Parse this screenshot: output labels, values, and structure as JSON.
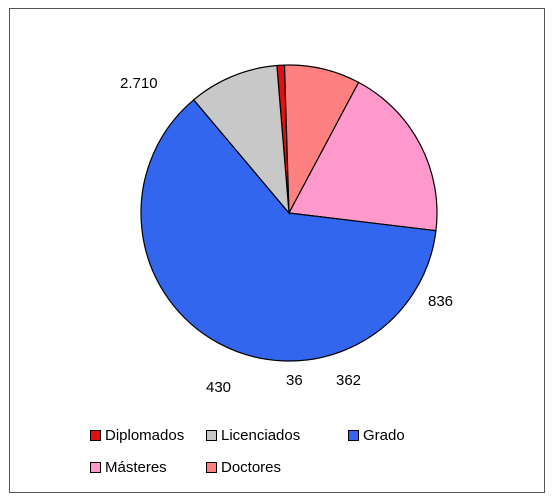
{
  "chart_data": {
    "type": "pie",
    "title": "",
    "categories": [
      "Diplomados",
      "Licenciados",
      "Grado",
      "Másteres",
      "Doctores"
    ],
    "values": [
      36,
      430,
      2710,
      836,
      362
    ],
    "value_labels": [
      "36",
      "430",
      "2.710",
      "836",
      "362"
    ],
    "colors": [
      "#e01010",
      "#c8c8c8",
      "#3366ee",
      "#ff99cc",
      "#ff8080"
    ],
    "legend_position": "bottom"
  }
}
